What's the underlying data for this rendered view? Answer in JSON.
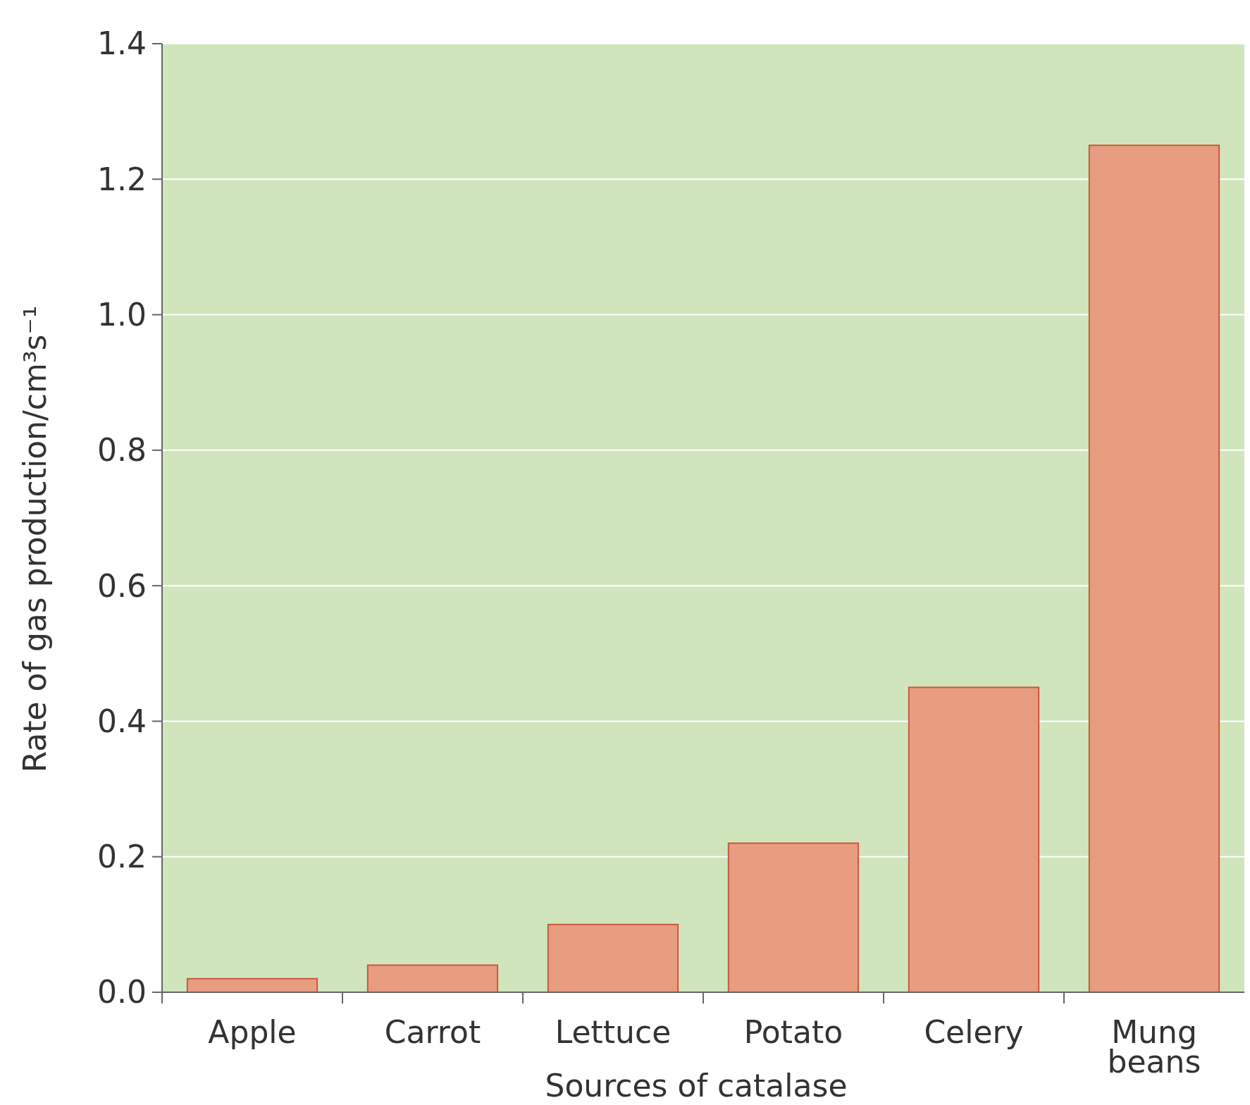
{
  "chart_data": {
    "type": "bar",
    "xlabel": "Sources of catalase",
    "ylabel": "Rate of gas production/cm³s⁻¹",
    "categories": [
      "Apple",
      "Carrot",
      "Lettuce",
      "Potato",
      "Celery",
      "Mung beans"
    ],
    "values": [
      0.02,
      0.04,
      0.1,
      0.22,
      0.45,
      1.25
    ],
    "color": "#e89c80",
    "ylim": [
      0,
      1.4
    ],
    "yticks": [
      {
        "value": 0,
        "label": "0.0"
      },
      {
        "value": 0.2,
        "label": "0.2"
      },
      {
        "value": 0.4,
        "label": "0.4"
      },
      {
        "value": 0.6,
        "label": "0.6"
      },
      {
        "value": 0.8,
        "label": "0.8"
      },
      {
        "value": 1,
        "label": "1.0"
      },
      {
        "value": 1.2,
        "label": "1.2"
      },
      {
        "value": 1.4,
        "label": "1.4"
      }
    ],
    "grid": "y"
  }
}
